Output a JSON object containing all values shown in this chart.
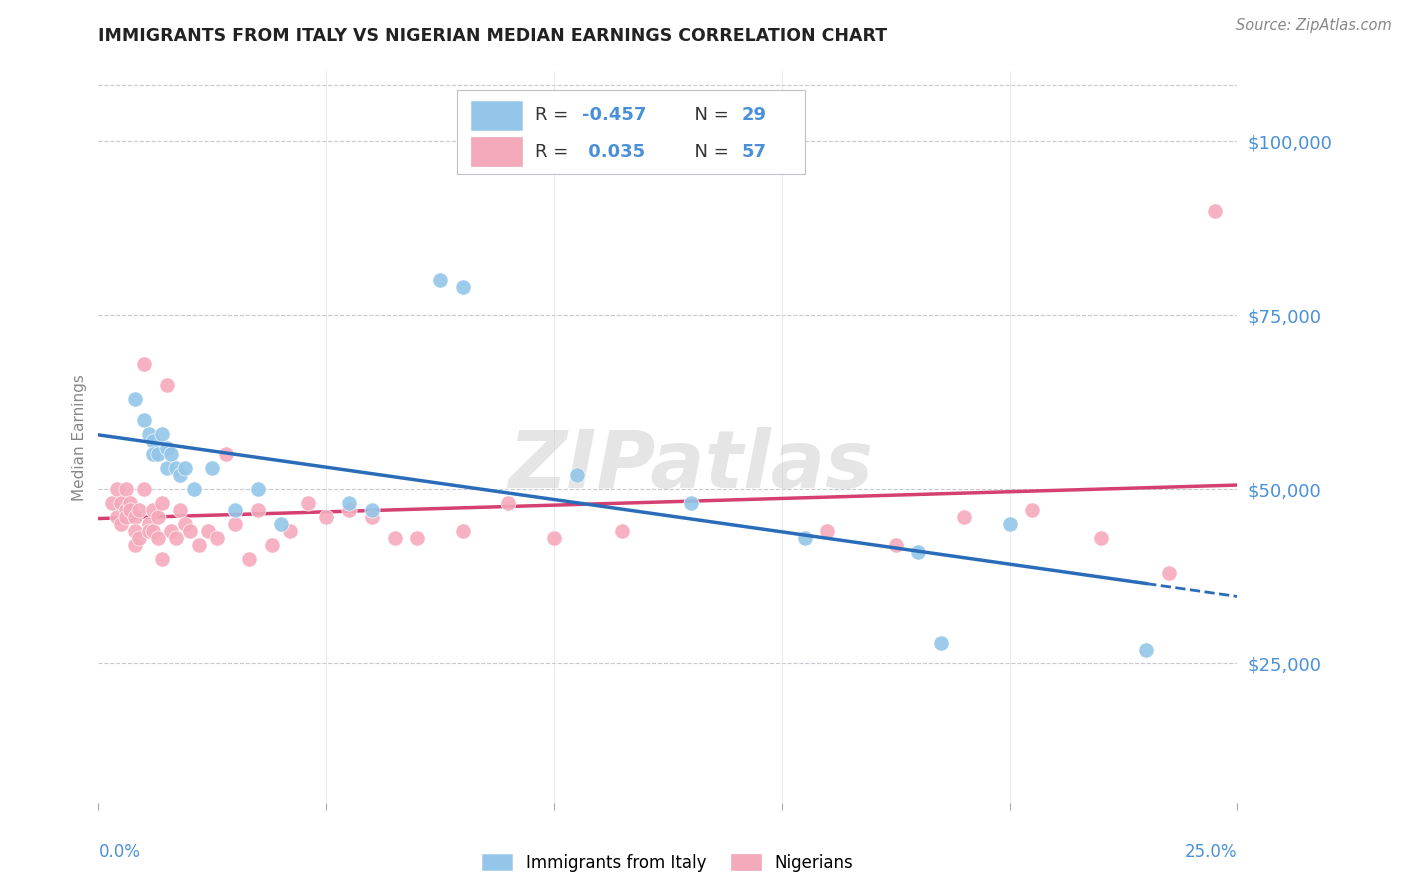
{
  "title": "IMMIGRANTS FROM ITALY VS NIGERIAN MEDIAN EARNINGS CORRELATION CHART",
  "source": "Source: ZipAtlas.com",
  "ylabel": "Median Earnings",
  "yticks": [
    25000,
    50000,
    75000,
    100000
  ],
  "ytick_labels": [
    "$25,000",
    "$50,000",
    "$75,000",
    "$100,000"
  ],
  "xmin": 0.0,
  "xmax": 0.25,
  "ymin": 5000,
  "ymax": 110000,
  "legend_r1": "R = -0.457",
  "legend_n1": "N = 29",
  "legend_r2": "R =  0.035",
  "legend_n2": "N = 57",
  "legend_label1": "Immigrants from Italy",
  "legend_label2": "Nigerians",
  "color_blue": "#93c6e8",
  "color_pink": "#f5aabc",
  "trendline_blue": "#2b6cb8",
  "trendline_pink": "#d44070",
  "watermark": "ZIPatlas",
  "blue_x": [
    0.008,
    0.01,
    0.011,
    0.012,
    0.012,
    0.013,
    0.014,
    0.015,
    0.015,
    0.016,
    0.017,
    0.018,
    0.019,
    0.021,
    0.025,
    0.03,
    0.035,
    0.04,
    0.055,
    0.06,
    0.075,
    0.08,
    0.105,
    0.13,
    0.155,
    0.18,
    0.185,
    0.2,
    0.23
  ],
  "blue_y": [
    63000,
    60000,
    58000,
    57000,
    55000,
    55000,
    58000,
    53000,
    56000,
    55000,
    53000,
    52000,
    53000,
    50000,
    53000,
    47000,
    50000,
    45000,
    48000,
    47000,
    80000,
    79000,
    52000,
    48000,
    43000,
    41000,
    28000,
    45000,
    27000
  ],
  "pink_x": [
    0.003,
    0.004,
    0.004,
    0.005,
    0.005,
    0.006,
    0.006,
    0.006,
    0.007,
    0.007,
    0.008,
    0.008,
    0.008,
    0.009,
    0.009,
    0.01,
    0.01,
    0.011,
    0.011,
    0.012,
    0.012,
    0.013,
    0.013,
    0.014,
    0.014,
    0.015,
    0.016,
    0.017,
    0.018,
    0.019,
    0.02,
    0.022,
    0.024,
    0.026,
    0.028,
    0.03,
    0.033,
    0.035,
    0.038,
    0.042,
    0.046,
    0.05,
    0.055,
    0.06,
    0.065,
    0.07,
    0.08,
    0.09,
    0.1,
    0.115,
    0.16,
    0.175,
    0.19,
    0.205,
    0.22,
    0.235,
    0.245
  ],
  "pink_y": [
    48000,
    50000,
    46000,
    48000,
    45000,
    50000,
    47000,
    46000,
    48000,
    47000,
    46000,
    44000,
    42000,
    47000,
    43000,
    68000,
    50000,
    45000,
    44000,
    47000,
    44000,
    46000,
    43000,
    48000,
    40000,
    65000,
    44000,
    43000,
    47000,
    45000,
    44000,
    42000,
    44000,
    43000,
    55000,
    45000,
    40000,
    47000,
    42000,
    44000,
    48000,
    46000,
    47000,
    46000,
    43000,
    43000,
    44000,
    48000,
    43000,
    44000,
    44000,
    42000,
    46000,
    47000,
    43000,
    38000,
    90000
  ]
}
